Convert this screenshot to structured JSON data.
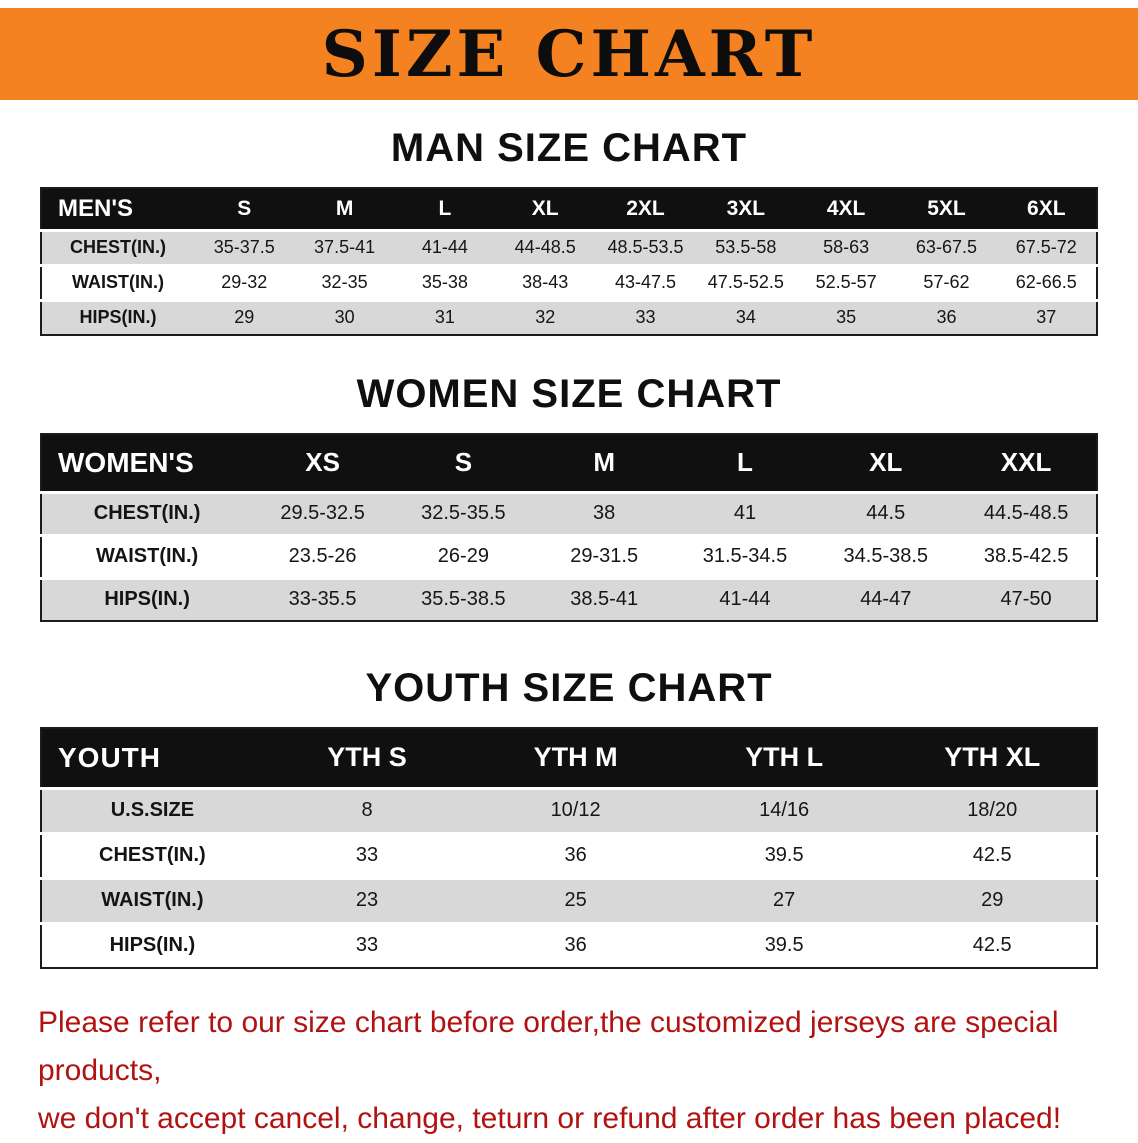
{
  "banner": {
    "title": "SIZE CHART",
    "bg_color": "#F58220",
    "text_color": "#0D0D0D"
  },
  "sections": [
    {
      "id": "men",
      "heading": "MAN SIZE CHART",
      "table": {
        "header": [
          "MEN'S",
          "S",
          "M",
          "L",
          "XL",
          "2XL",
          "3XL",
          "4XL",
          "5XL",
          "6XL"
        ],
        "rows": [
          {
            "label": "CHEST(IN.)",
            "values": [
              "35-37.5",
              "37.5-41",
              "41-44",
              "44-48.5",
              "48.5-53.5",
              "53.5-58",
              "58-63",
              "63-67.5",
              "67.5-72"
            ]
          },
          {
            "label": "WAIST(IN.)",
            "values": [
              "29-32",
              "32-35",
              "35-38",
              "38-43",
              "43-47.5",
              "47.5-52.5",
              "52.5-57",
              "57-62",
              "62-66.5"
            ]
          },
          {
            "label": "HIPS(IN.)",
            "values": [
              "29",
              "30",
              "31",
              "32",
              "33",
              "34",
              "35",
              "36",
              "37"
            ]
          }
        ]
      }
    },
    {
      "id": "women",
      "heading": "WOMEN SIZE CHART",
      "table": {
        "header": [
          "WOMEN'S",
          "XS",
          "S",
          "M",
          "L",
          "XL",
          "XXL"
        ],
        "rows": [
          {
            "label": "CHEST(IN.)",
            "values": [
              "29.5-32.5",
              "32.5-35.5",
              "38",
              "41",
              "44.5",
              "44.5-48.5"
            ]
          },
          {
            "label": "WAIST(IN.)",
            "values": [
              "23.5-26",
              "26-29",
              "29-31.5",
              "31.5-34.5",
              "34.5-38.5",
              "38.5-42.5"
            ]
          },
          {
            "label": "HIPS(IN.)",
            "values": [
              "33-35.5",
              "35.5-38.5",
              "38.5-41",
              "41-44",
              "44-47",
              "47-50"
            ]
          }
        ]
      }
    },
    {
      "id": "youth",
      "heading": "YOUTH SIZE CHART",
      "table": {
        "header": [
          "YOUTH",
          "YTH S",
          "YTH M",
          "YTH L",
          "YTH XL"
        ],
        "rows": [
          {
            "label": "U.S.SIZE",
            "values": [
              "8",
              "10/12",
              "14/16",
              "18/20"
            ]
          },
          {
            "label": "CHEST(IN.)",
            "values": [
              "33",
              "36",
              "39.5",
              "42.5"
            ]
          },
          {
            "label": "WAIST(IN.)",
            "values": [
              "23",
              "25",
              "27",
              "29"
            ]
          },
          {
            "label": "HIPS(IN.)",
            "values": [
              "33",
              "36",
              "39.5",
              "42.5"
            ]
          }
        ]
      }
    }
  ],
  "footer": {
    "line1": "Please refer to our size chart before order,the customized jerseys are special products,",
    "line2": "we don't accept cancel, change, teturn or refund after order has been placed!",
    "text_color": "#B11212"
  },
  "colors": {
    "row_shade": "#D8D8D8",
    "table_header_bg": "#101010",
    "table_header_text": "#FFFFFF"
  }
}
